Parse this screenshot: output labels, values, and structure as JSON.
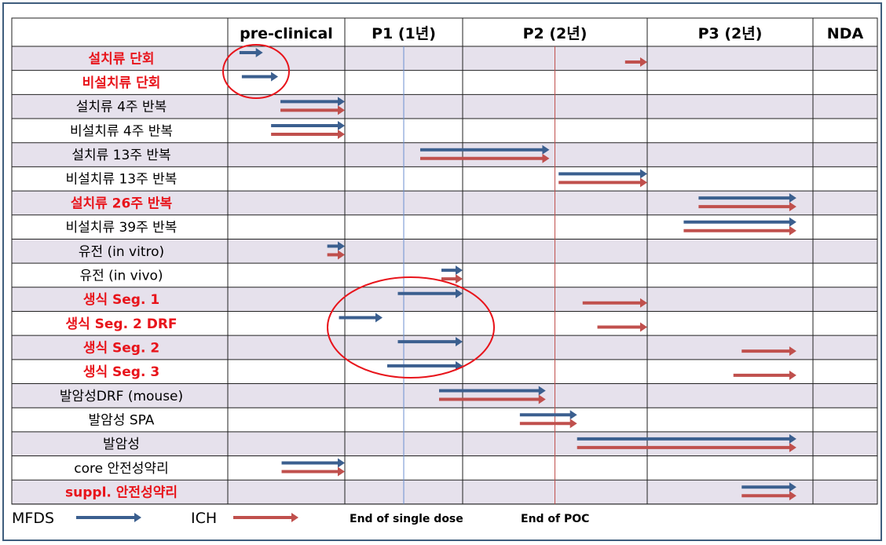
{
  "chart_data": {
    "type": "gantt",
    "columns": [
      "pre-clinical",
      "P1 (1년)",
      "P2 (2년)",
      "P3 (2년)",
      "NDA"
    ],
    "legend": [
      {
        "name": "MFDS",
        "color": "#3b5f8f"
      },
      {
        "name": "ICH",
        "color": "#c0504d"
      }
    ],
    "markers": [
      {
        "label": "End of single dose",
        "position": 1.5,
        "color": "#6b8fcf"
      },
      {
        "label": "End of POC",
        "position": 2.5,
        "color": "#c0504d"
      }
    ],
    "colors": {
      "highlight_text": "#e8141b",
      "normal_text": "#000000",
      "shade_row": "#e6e1ec"
    },
    "rows": [
      {
        "label": "설치류 단회",
        "highlight": true,
        "mfds": [
          0.1,
          0.3
        ],
        "ich": [
          2.88,
          3.0
        ]
      },
      {
        "label": "비설치류 단회",
        "highlight": true,
        "mfds": [
          0.12,
          0.43
        ],
        "ich": null
      },
      {
        "label": "설치류 4주 반복",
        "highlight": false,
        "mfds": [
          0.45,
          1.0
        ],
        "ich": [
          0.45,
          1.0
        ]
      },
      {
        "label": "비설치류 4주 반복",
        "highlight": false,
        "mfds": [
          0.37,
          1.0
        ],
        "ich": [
          0.37,
          1.0
        ]
      },
      {
        "label": "설치류 13주 반복",
        "highlight": false,
        "mfds": [
          1.64,
          2.47
        ],
        "ich": [
          1.64,
          2.47
        ]
      },
      {
        "label": "비설치류 13주 반복",
        "highlight": false,
        "mfds": [
          2.52,
          3.0
        ],
        "ich": [
          2.52,
          3.0
        ]
      },
      {
        "label": "설치류 26주 반복",
        "highlight": true,
        "mfds": [
          3.31,
          3.9
        ],
        "ich": [
          3.31,
          3.9
        ]
      },
      {
        "label": "비설치류 39주 반복",
        "highlight": false,
        "mfds": [
          3.22,
          3.9
        ],
        "ich": [
          3.22,
          3.9
        ]
      },
      {
        "label": "유전 (in vitro)",
        "highlight": false,
        "mfds": [
          0.85,
          1.0
        ],
        "ich": [
          0.85,
          1.0
        ]
      },
      {
        "label": "유전 (in vivo)",
        "highlight": false,
        "mfds": [
          1.82,
          2.0
        ],
        "ich": [
          1.82,
          2.0
        ]
      },
      {
        "label": "생식 Seg. 1",
        "highlight": true,
        "mfds": [
          1.45,
          2.0
        ],
        "ich": [
          2.65,
          3.0
        ]
      },
      {
        "label": "생식 Seg. 2 DRF",
        "highlight": true,
        "mfds": [
          0.95,
          1.32
        ],
        "ich": [
          2.73,
          3.0
        ]
      },
      {
        "label": "생식 Seg. 2",
        "highlight": true,
        "mfds": [
          1.45,
          2.0
        ],
        "ich": [
          3.57,
          3.9
        ]
      },
      {
        "label": "생식 Seg. 3",
        "highlight": true,
        "mfds": [
          1.36,
          2.0
        ],
        "ich": [
          3.52,
          3.9
        ]
      },
      {
        "label": "발암성DRF (mouse)",
        "highlight": false,
        "mfds": [
          1.8,
          2.45
        ],
        "ich": [
          1.8,
          2.45
        ]
      },
      {
        "label": "발암성 SPA",
        "highlight": false,
        "mfds": [
          2.31,
          2.62
        ],
        "ich": [
          2.31,
          2.62
        ]
      },
      {
        "label": "발암성",
        "highlight": false,
        "mfds": [
          2.62,
          3.9
        ],
        "ich": [
          2.62,
          3.9
        ]
      },
      {
        "label": "core 안전성약리",
        "highlight": false,
        "mfds": [
          0.46,
          1.0
        ],
        "ich": [
          0.46,
          1.0
        ]
      },
      {
        "label": "suppl. 안전성약리",
        "highlight": true,
        "mfds": [
          3.57,
          3.9
        ],
        "ich": [
          3.57,
          3.9
        ]
      }
    ],
    "circles": [
      {
        "label": "single-dose group"
      },
      {
        "label": "reproductive group"
      }
    ]
  },
  "legend_labels": {
    "mfds": "MFDS",
    "ich": "ICH"
  }
}
